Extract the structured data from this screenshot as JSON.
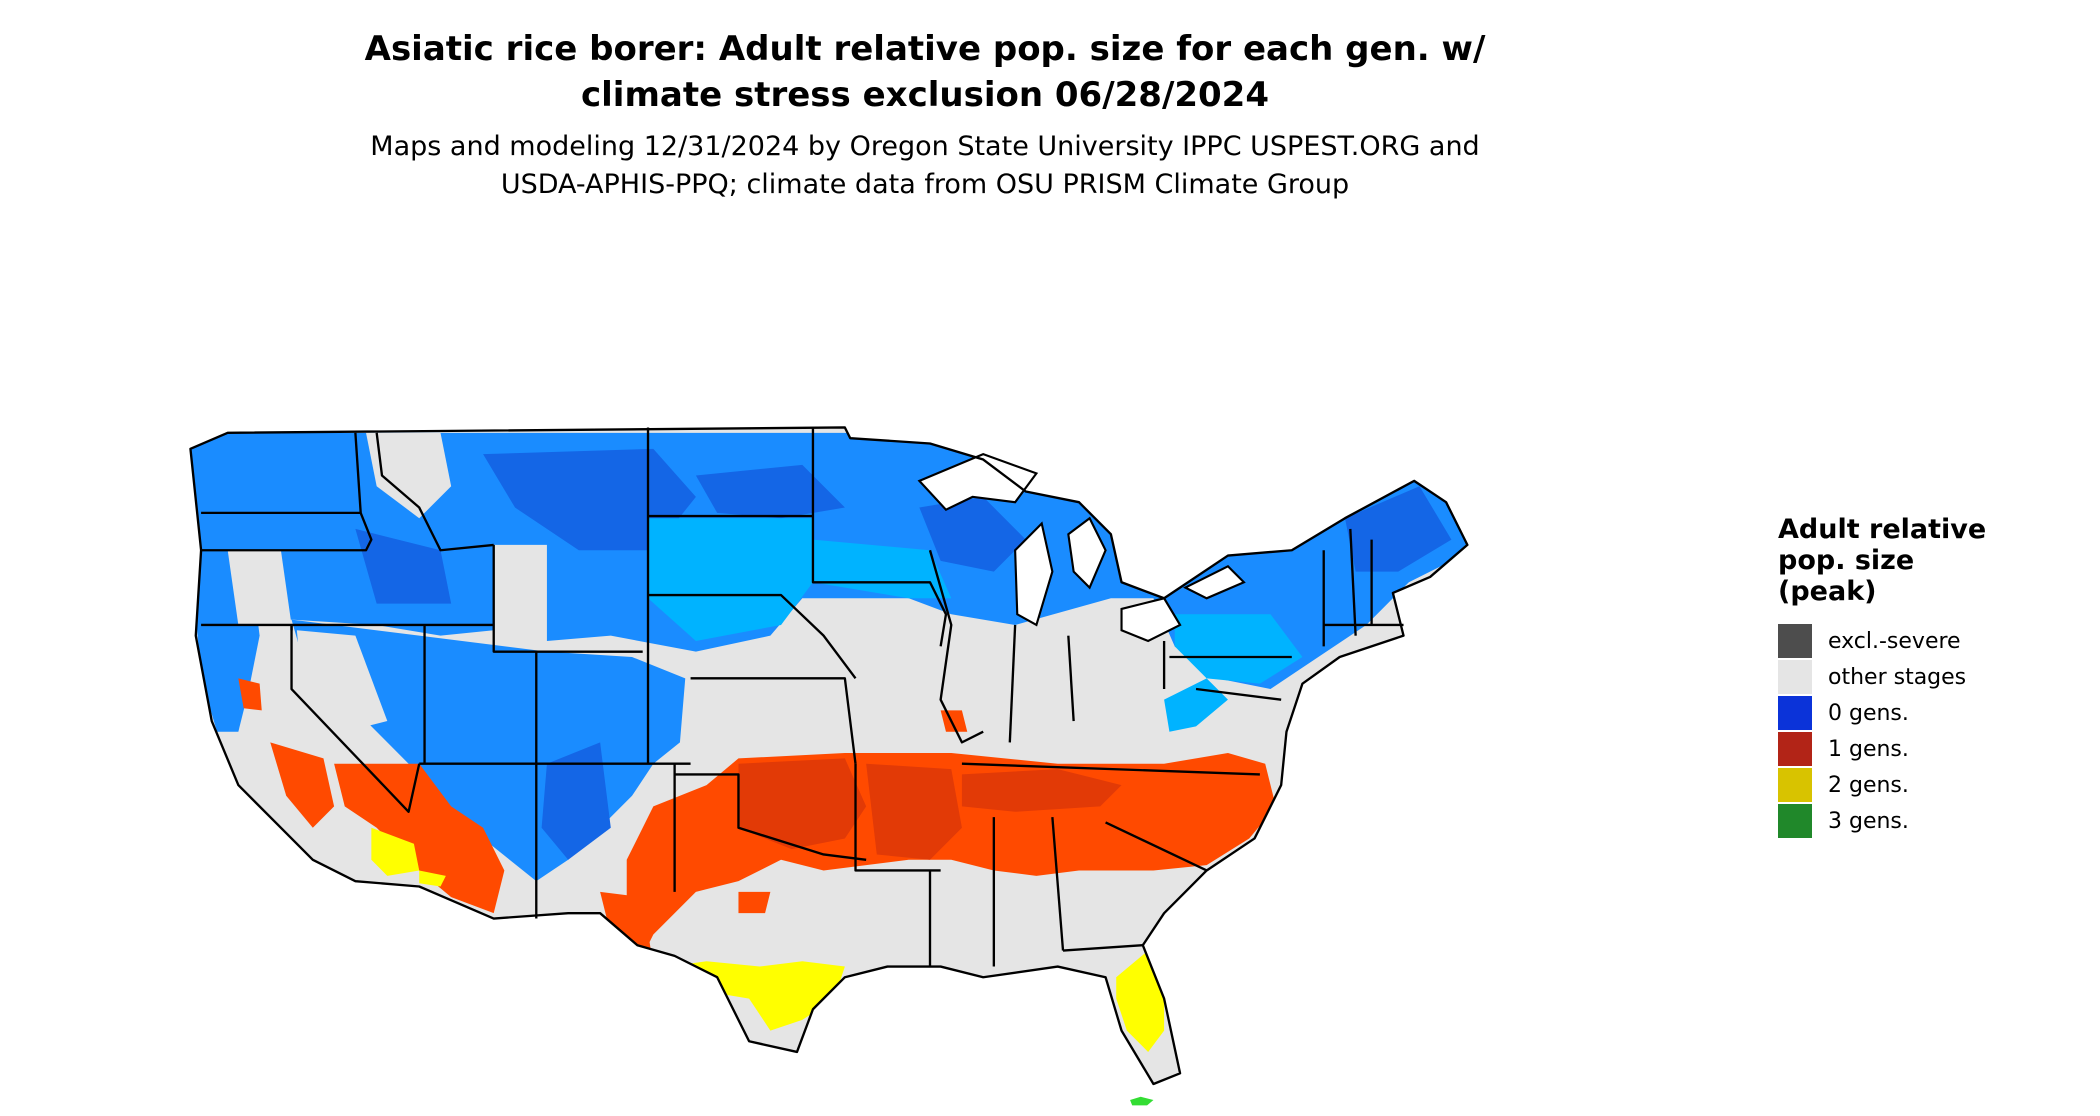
{
  "title": {
    "line1": "Asiatic rice borer: Adult relative pop. size for each gen. w/",
    "line2": "climate stress exclusion 06/28/2024"
  },
  "subtitle": {
    "line1": "Maps and modeling 12/31/2024 by Oregon State University IPPC USPEST.ORG and",
    "line2": "USDA-APHIS-PPQ; climate data from OSU PRISM Climate Group"
  },
  "legend": {
    "title_line1": "Adult relative",
    "title_line2": "pop. size",
    "title_line3": "(peak)",
    "items": [
      {
        "label": "excl.-severe",
        "color": "#4d4d4d"
      },
      {
        "label": "other stages",
        "color": "#e5e5e5"
      },
      {
        "label": "0 gens.",
        "color": "#0b33d9"
      },
      {
        "label": "1 gens.",
        "color": "#b22417"
      },
      {
        "label": "2 gens.",
        "color": "#d8c300"
      },
      {
        "label": "3 gens.",
        "color": "#20882a"
      }
    ]
  },
  "map_colors": {
    "land_other": "#e5e5e5",
    "blue_light": "#00b3ff",
    "blue_mid": "#1a8cff",
    "blue_dark": "#1466e6",
    "red": "#ff4a00",
    "red_dark": "#e23a06",
    "yellow": "#ffff00",
    "green": "#33dd33",
    "border": "#000000"
  }
}
